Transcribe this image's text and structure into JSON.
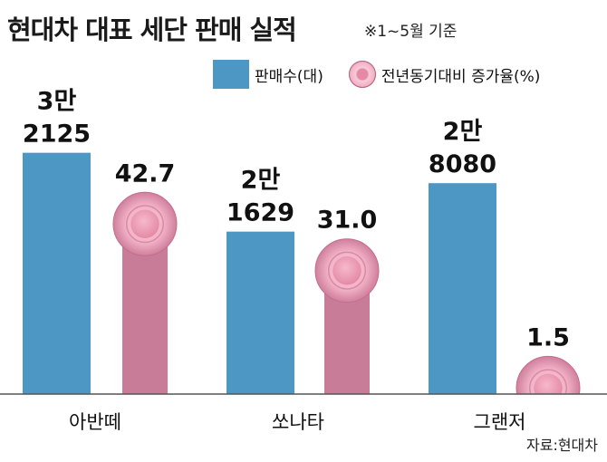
{
  "header": {
    "title": "현대차 대표 세단 판매 실적",
    "note": "※1~5월 기준"
  },
  "legend": {
    "sales_label": "판매수(대)",
    "growth_label": "전년동기대비 증가율(%)"
  },
  "colors": {
    "bar": "#4d97c4",
    "stem": "#c97c98",
    "knob_light": "#f7cbd8",
    "knob_mid": "#f2b2c6",
    "knob_center": "#e58aa6"
  },
  "chart_data": {
    "type": "bar",
    "title": "현대차 대표 세단 판매 실적",
    "categories": [
      "아반떼",
      "쏘나타",
      "그랜저"
    ],
    "series": [
      {
        "name": "판매수(대)",
        "values": [
          32125,
          21629,
          28080
        ]
      },
      {
        "name": "전년동기대비 증가율(%)",
        "values": [
          42.7,
          31.0,
          1.5
        ]
      }
    ],
    "sales_labels": [
      {
        "top": "3만",
        "bottom": "2125"
      },
      {
        "top": "2만",
        "bottom": "1629"
      },
      {
        "top": "2만",
        "bottom": "8080"
      }
    ],
    "growth_labels": [
      "42.7",
      "31.0",
      "1.5"
    ],
    "ylim_sales": [
      0,
      40000
    ],
    "ylim_growth": [
      0,
      80
    ],
    "xlabel": "",
    "ylabel": ""
  },
  "footer": {
    "source": "자료:현대차"
  }
}
